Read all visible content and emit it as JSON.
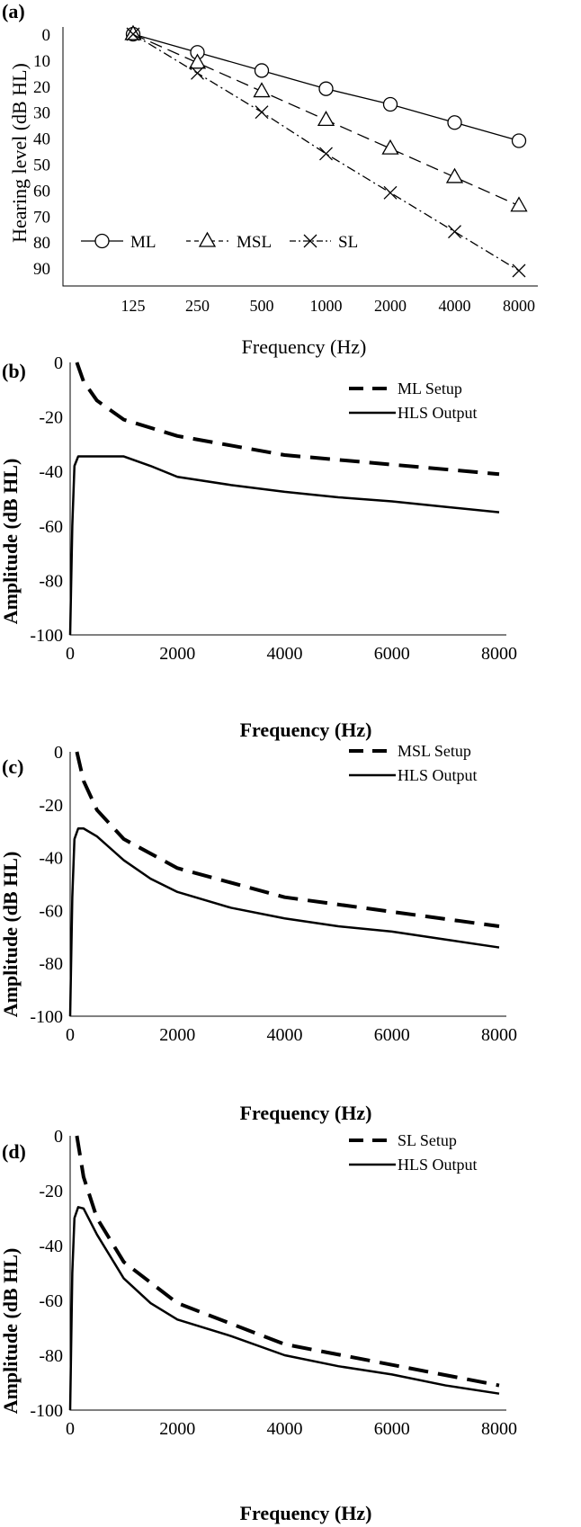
{
  "chart_data": [
    {
      "panel": "(a)",
      "type": "line",
      "categories": [
        "125",
        "250",
        "500",
        "1000",
        "2000",
        "4000",
        "8000"
      ],
      "xlabel": "Frequency (Hz)",
      "ylabel": "Hearing level (dB HL)",
      "y_ticks": [
        "0",
        "10",
        "20",
        "30",
        "40",
        "50",
        "60",
        "70",
        "80",
        "90"
      ],
      "ylim": [
        0,
        100
      ],
      "y_inverted": true,
      "legend_position": "bottom-left",
      "series": [
        {
          "name": "ML",
          "marker": "circle",
          "dash": "solid",
          "values": [
            0,
            7,
            14,
            21,
            27,
            34,
            41
          ]
        },
        {
          "name": "MSL",
          "marker": "triangle",
          "dash": "dashed",
          "values": [
            0,
            11,
            22,
            33,
            44,
            55,
            66
          ]
        },
        {
          "name": "SL",
          "marker": "cross",
          "dash": "dash-dot",
          "values": [
            0,
            15,
            30,
            46,
            61,
            76,
            91
          ]
        }
      ]
    },
    {
      "panel": "(b)",
      "type": "line",
      "xlabel": "Frequency (Hz)",
      "ylabel": "Amplitude (dB HL)",
      "xlim": [
        0,
        8000
      ],
      "ylim": [
        -100,
        0
      ],
      "x_ticks": [
        "0",
        "2000",
        "4000",
        "6000",
        "8000"
      ],
      "y_ticks": [
        "0",
        "-20",
        "-40",
        "-60",
        "-80",
        "-100"
      ],
      "legend_position": "top-right",
      "series": [
        {
          "name": "ML Setup",
          "dash": "dashed",
          "x": [
            125,
            250,
            500,
            1000,
            2000,
            4000,
            8000
          ],
          "y": [
            0,
            -7,
            -14,
            -21,
            -27,
            -34,
            -41
          ]
        },
        {
          "name": "HLS Output",
          "dash": "solid",
          "x": [
            0,
            40,
            80,
            150,
            250,
            500,
            1000,
            1500,
            2000,
            3000,
            4000,
            5000,
            6000,
            7000,
            8000
          ],
          "y": [
            -100,
            -60,
            -38,
            -34.5,
            -34.5,
            -34.5,
            -34.5,
            -38,
            -42,
            -45,
            -47.5,
            -49.5,
            -51,
            -53,
            -55
          ]
        }
      ]
    },
    {
      "panel": "(c)",
      "type": "line",
      "xlabel": "Frequency (Hz)",
      "ylabel": "Amplitude (dB HL)",
      "xlim": [
        0,
        8000
      ],
      "ylim": [
        -100,
        0
      ],
      "x_ticks": [
        "0",
        "2000",
        "4000",
        "6000",
        "8000"
      ],
      "y_ticks": [
        "0",
        "-20",
        "-40",
        "-60",
        "-80",
        "-100"
      ],
      "legend_position": "top-right",
      "series": [
        {
          "name": "MSL Setup",
          "dash": "dashed",
          "x": [
            125,
            250,
            500,
            1000,
            2000,
            4000,
            8000
          ],
          "y": [
            0,
            -11,
            -22,
            -33,
            -44,
            -55,
            -66
          ]
        },
        {
          "name": "HLS Output",
          "dash": "solid",
          "x": [
            0,
            40,
            80,
            150,
            250,
            500,
            1000,
            1500,
            2000,
            3000,
            4000,
            5000,
            6000,
            7000,
            8000
          ],
          "y": [
            -100,
            -55,
            -33,
            -29,
            -29,
            -32,
            -41,
            -48,
            -53,
            -59,
            -63,
            -66,
            -68,
            -71,
            -74
          ]
        }
      ]
    },
    {
      "panel": "(d)",
      "type": "line",
      "xlabel": "Frequency (Hz)",
      "ylabel": "Amplitude (dB HL)",
      "xlim": [
        0,
        8000
      ],
      "ylim": [
        -100,
        0
      ],
      "x_ticks": [
        "0",
        "2000",
        "4000",
        "6000",
        "8000"
      ],
      "y_ticks": [
        "0",
        "-20",
        "-40",
        "-60",
        "-80",
        "-100"
      ],
      "legend_position": "top-right",
      "series": [
        {
          "name": "SL Setup",
          "dash": "dashed",
          "x": [
            125,
            250,
            500,
            1000,
            2000,
            4000,
            8000
          ],
          "y": [
            0,
            -15,
            -30,
            -46,
            -61,
            -76,
            -91
          ]
        },
        {
          "name": "HLS Output",
          "dash": "solid",
          "x": [
            0,
            40,
            80,
            150,
            250,
            500,
            1000,
            1500,
            2000,
            3000,
            4000,
            5000,
            6000,
            7000,
            8000
          ],
          "y": [
            -100,
            -50,
            -30,
            -26,
            -26.5,
            -36,
            -52,
            -61,
            -67,
            -73,
            -80,
            -84,
            -87,
            -91,
            -94
          ]
        }
      ]
    }
  ]
}
